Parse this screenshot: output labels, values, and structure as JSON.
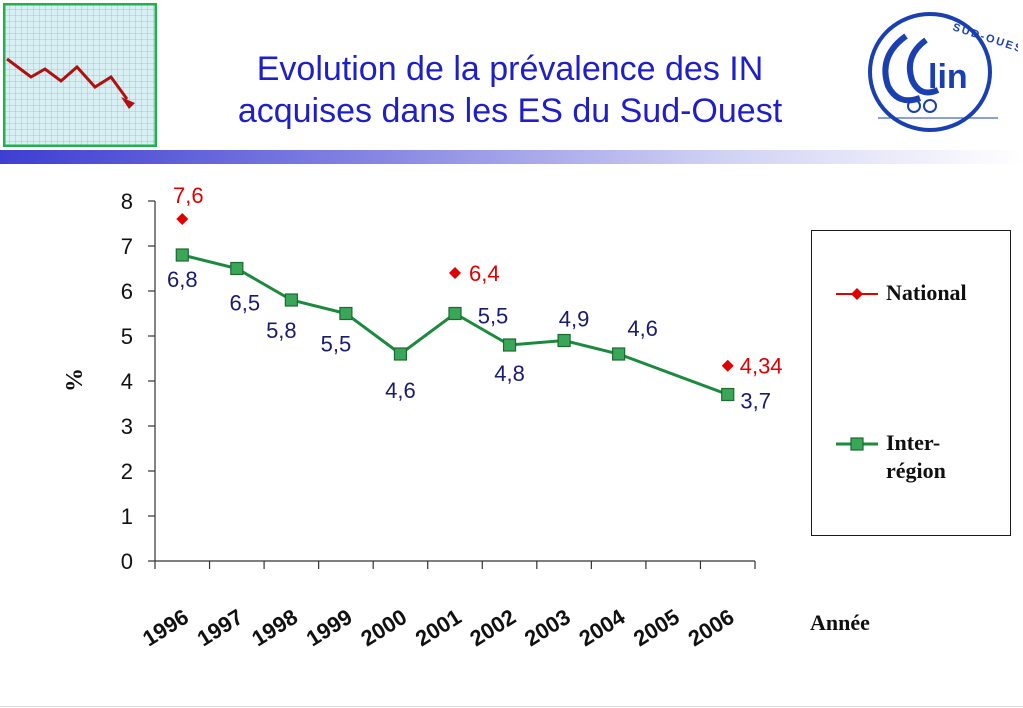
{
  "slide": {
    "title_line1": "Evolution de la prévalence des IN",
    "title_line2": "acquises dans les ES du Sud-Ouest",
    "logo_text_main": "CClin",
    "logo_text_arc": "SUD-OUEST"
  },
  "colors": {
    "title": "#1f1fc8",
    "national": "#e00000",
    "interregion": "#1b8a3c",
    "interregion_fill": "#3aa65a",
    "data_label": "#1a1a6e"
  },
  "chart_data": {
    "type": "line",
    "title": "",
    "xlabel": "Année",
    "ylabel": "%",
    "ylim": [
      0,
      8
    ],
    "yticks": [
      0,
      1,
      2,
      3,
      4,
      5,
      6,
      7,
      8
    ],
    "categories": [
      "1996",
      "1997",
      "1998",
      "1999",
      "2000",
      "2001",
      "2002",
      "2003",
      "2004",
      "2005",
      "2006"
    ],
    "legend_position": "right",
    "grid": false,
    "series": [
      {
        "name": "National",
        "marker": "diamond",
        "points": [
          {
            "x": 1996.5,
            "y": 7.6,
            "label": "7,6"
          },
          {
            "x": 2001.5,
            "y": 6.4,
            "label": "6,4"
          },
          {
            "x": 2006.5,
            "y": 4.34,
            "label": "4,34"
          }
        ]
      },
      {
        "name": "Inter-région",
        "marker": "square",
        "points": [
          {
            "x": 1996.5,
            "y": 6.8,
            "label": "6,8"
          },
          {
            "x": 1997.5,
            "y": 6.5,
            "label": "6,5"
          },
          {
            "x": 1998.5,
            "y": 5.8,
            "label": "5,8"
          },
          {
            "x": 1999.5,
            "y": 5.5,
            "label": "5,5"
          },
          {
            "x": 2000.5,
            "y": 4.6,
            "label": "4,6"
          },
          {
            "x": 2001.5,
            "y": 5.5,
            "label": "5,5"
          },
          {
            "x": 2002.5,
            "y": 4.8,
            "label": "4,8"
          },
          {
            "x": 2003.5,
            "y": 4.9,
            "label": "4,9"
          },
          {
            "x": 2004.5,
            "y": 4.6,
            "label": "4,6"
          },
          {
            "x": 2006.5,
            "y": 3.7,
            "label": "3,7"
          }
        ]
      }
    ]
  }
}
